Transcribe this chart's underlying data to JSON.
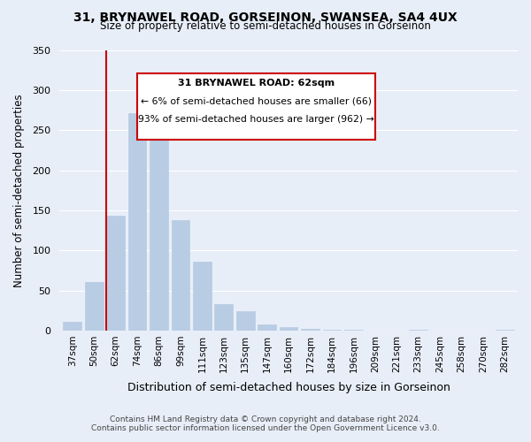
{
  "title1": "31, BRYNAWEL ROAD, GORSEINON, SWANSEA, SA4 4UX",
  "title2": "Size of property relative to semi-detached houses in Gorseinon",
  "xlabel": "Distribution of semi-detached houses by size in Gorseinon",
  "ylabel": "Number of semi-detached properties",
  "bar_labels": [
    "37sqm",
    "50sqm",
    "62sqm",
    "74sqm",
    "86sqm",
    "99sqm",
    "111sqm",
    "123sqm",
    "135sqm",
    "147sqm",
    "160sqm",
    "172sqm",
    "184sqm",
    "196sqm",
    "209sqm",
    "221sqm",
    "233sqm",
    "245sqm",
    "258sqm",
    "270sqm",
    "282sqm"
  ],
  "bar_values": [
    11,
    60,
    143,
    271,
    258,
    138,
    86,
    33,
    24,
    8,
    4,
    2,
    1,
    1,
    0,
    0,
    1,
    0,
    0,
    0,
    1
  ],
  "bar_color": "#b8cce4",
  "highlight_bar_index": 2,
  "highlight_line_color": "#cc0000",
  "ylim": [
    0,
    350
  ],
  "yticks": [
    0,
    50,
    100,
    150,
    200,
    250,
    300,
    350
  ],
  "annotation_title": "31 BRYNAWEL ROAD: 62sqm",
  "annotation_line1": "← 6% of semi-detached houses are smaller (66)",
  "annotation_line2": "93% of semi-detached houses are larger (962) →",
  "annotation_box_color": "#ffffff",
  "annotation_box_edge": "#cc0000",
  "footnote1": "Contains HM Land Registry data © Crown copyright and database right 2024.",
  "footnote2": "Contains public sector information licensed under the Open Government Licence v3.0.",
  "bg_color": "#e8eef8"
}
